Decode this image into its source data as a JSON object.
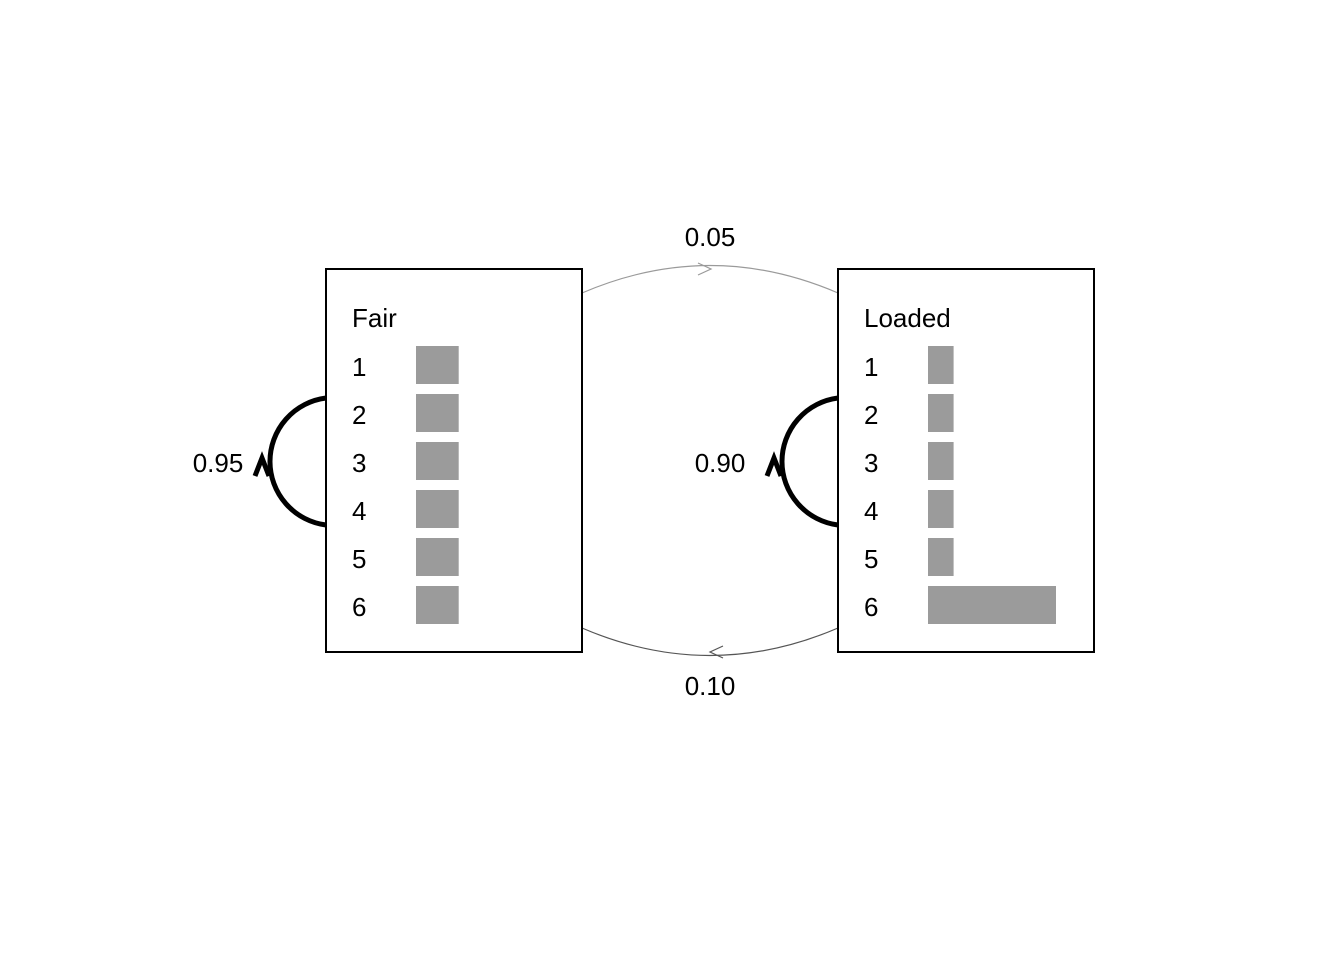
{
  "states": [
    {
      "name": "Fair",
      "self_prob": "0.95",
      "faces": [
        "1",
        "2",
        "3",
        "4",
        "5",
        "6"
      ],
      "emission_probs": [
        0.1667,
        0.1667,
        0.1667,
        0.1667,
        0.1667,
        0.1667
      ]
    },
    {
      "name": "Loaded",
      "self_prob": "0.90",
      "faces": [
        "1",
        "2",
        "3",
        "4",
        "5",
        "6"
      ],
      "emission_probs": [
        0.1,
        0.1,
        0.1,
        0.1,
        0.1,
        0.5
      ]
    }
  ],
  "transitions": {
    "fair_to_loaded": "0.05",
    "loaded_to_fair": "0.10"
  },
  "colors": {
    "bar": "#9b9b9b",
    "self_loop": "#000000",
    "fair_to_loaded_arc": "#9a9a9a",
    "loaded_to_fair_arc": "#555555"
  }
}
